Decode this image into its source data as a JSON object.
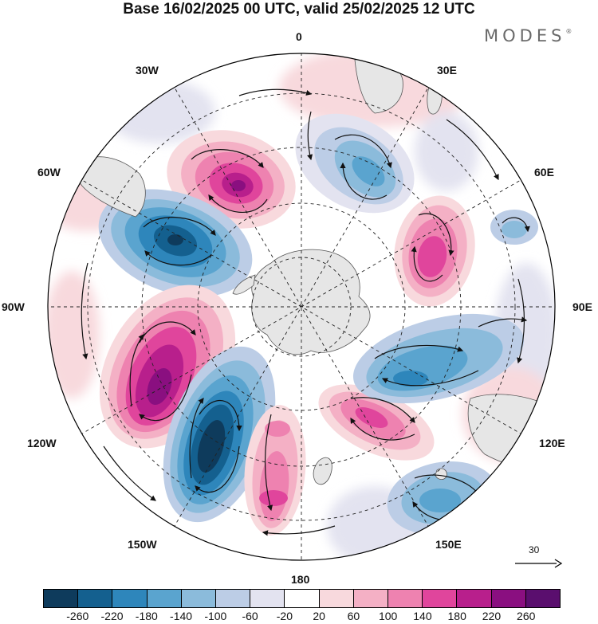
{
  "header": {
    "title": "Base 16/02/2025 00 UTC, valid 25/02/2025 12 UTC",
    "brand": "MODES",
    "brand_mark": "®"
  },
  "map": {
    "projection": "south polar stereographic",
    "longitude_labels": {
      "top": "0",
      "bottom": "180",
      "left": "90W",
      "right": "90E",
      "upper_left_1": "30W",
      "upper_left_2": "60W",
      "lower_left_1": "120W",
      "lower_left_2": "150W",
      "upper_right_1": "30E",
      "upper_right_2": "60E",
      "lower_right_1": "120E",
      "lower_right_2": "150E"
    },
    "anomaly_centers": [
      {
        "name": "positive-south-atlantic",
        "sign": "positive",
        "intensity": "strong"
      },
      {
        "name": "negative-drake-passage",
        "sign": "negative",
        "intensity": "strong"
      },
      {
        "name": "positive-southeast-pacific",
        "sign": "positive",
        "intensity": "strong"
      },
      {
        "name": "negative-south-pacific",
        "sign": "negative",
        "intensity": "very strong"
      },
      {
        "name": "positive-ross-sea-north",
        "sign": "positive",
        "intensity": "moderate"
      },
      {
        "name": "negative-southern-ocean-indian",
        "sign": "negative",
        "intensity": "moderate"
      },
      {
        "name": "positive-south-indian",
        "sign": "positive",
        "intensity": "strong"
      },
      {
        "name": "negative-south-of-africa",
        "sign": "negative",
        "intensity": "moderate"
      },
      {
        "name": "positive-south-of-australia",
        "sign": "positive",
        "intensity": "moderate"
      },
      {
        "name": "negative-tasman-sea",
        "sign": "negative",
        "intensity": "moderate"
      }
    ]
  },
  "reference_vector": {
    "value": "30"
  },
  "colorbar": {
    "tick_labels": [
      "-260",
      "-220",
      "-180",
      "-140",
      "-100",
      "-60",
      "-20",
      "20",
      "60",
      "100",
      "140",
      "180",
      "220",
      "260"
    ],
    "colors": [
      "#0e3b5c",
      "#14608f",
      "#2e86bb",
      "#5aa4cf",
      "#8bbbdb",
      "#bccde6",
      "#e3e3f0",
      "#ffffff",
      "#f8d9dd",
      "#f4b0c5",
      "#ee82b0",
      "#e0459c",
      "#b81f8c",
      "#8a0f80",
      "#5a0e6e"
    ]
  }
}
